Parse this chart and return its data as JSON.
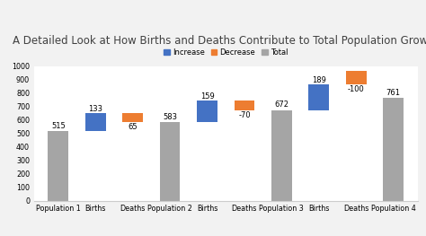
{
  "title": "A Detailed Look at How Births and Deaths Contribute to Total Population Growth",
  "title_fontsize": 8.5,
  "legend_labels": [
    "Increase",
    "Decrease",
    "Total"
  ],
  "legend_colors": [
    "#4472C4",
    "#ED7D31",
    "#A5A5A5"
  ],
  "categories": [
    "Population 1",
    "Births",
    "Deaths",
    "Population 2",
    "Births",
    "Deaths",
    "Population 3",
    "Births",
    "Deaths",
    "Population 4"
  ],
  "bar_types": [
    "total",
    "increase",
    "decrease",
    "total",
    "increase",
    "decrease",
    "total",
    "increase",
    "decrease",
    "total"
  ],
  "bar_display_values": [
    "515",
    "133",
    "65",
    "583",
    "159",
    "-70",
    "672",
    "189",
    "-100",
    "761"
  ],
  "bar_bases": [
    0,
    515,
    583,
    0,
    583,
    672,
    0,
    672,
    861,
    0
  ],
  "bar_heights": [
    515,
    133,
    65,
    583,
    159,
    70,
    672,
    189,
    100,
    761
  ],
  "bar_colors": [
    "#A5A5A5",
    "#4472C4",
    "#ED7D31",
    "#A5A5A5",
    "#4472C4",
    "#ED7D31",
    "#A5A5A5",
    "#4472C4",
    "#ED7D31",
    "#A5A5A5"
  ],
  "ylim": [
    0,
    1000
  ],
  "yticks": [
    0,
    100,
    200,
    300,
    400,
    500,
    600,
    700,
    800,
    900,
    1000
  ],
  "bgcolor": "#F2F2F2",
  "plot_bgcolor": "#FFFFFF",
  "grid_color": "#FFFFFF",
  "label_fontsize": 6.0,
  "axis_label_fontsize": 5.8,
  "bar_width": 0.55
}
